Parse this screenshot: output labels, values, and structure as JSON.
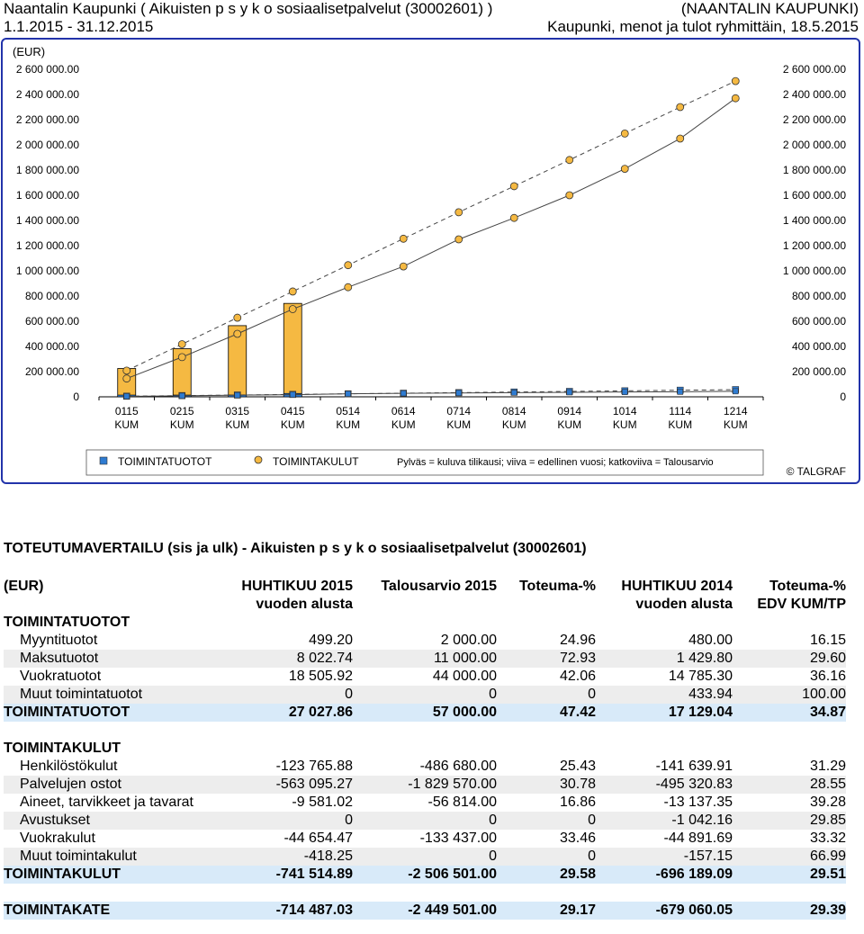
{
  "header": {
    "line1_left": "Naantalin Kaupunki ( Aikuisten  p s y k o sosiaalisetpalvelut (30002601) )",
    "line1_right": "(NAANTALIN KAUPUNKI)",
    "line2_left": "1.1.2015 - 31.12.2015",
    "line2_right": "Kaupunki, menot ja tulot ryhmittäin, 18.5.2015"
  },
  "chart_data": {
    "type": "bar",
    "unit_label": "(EUR)",
    "categories": [
      "0115\nKUM",
      "0215\nKUM",
      "0315\nKUM",
      "0415\nKUM",
      "0514\nKUM",
      "0614\nKUM",
      "0714\nKUM",
      "0814\nKUM",
      "0914\nKUM",
      "1014\nKUM",
      "1114\nKUM",
      "1214\nKUM"
    ],
    "ylim": [
      0,
      2600000
    ],
    "y_ticks": [
      "0",
      "200 000.00",
      "400 000.00",
      "600 000.00",
      "800 000.00",
      "1 000 000.00",
      "1 200 000.00",
      "1 400 000.00",
      "1 600 000.00",
      "1 800 000.00",
      "2 000 000.00",
      "2 200 000.00",
      "2 400 000.00",
      "2 600 000.00"
    ],
    "series": [
      {
        "name": "TOIMINTATUOTOT",
        "kind": "bar",
        "color": "#2e7bd1",
        "values": [
          5500,
          6200,
          14800,
          27027.86,
          null,
          null,
          null,
          null,
          null,
          null,
          null,
          null
        ]
      },
      {
        "name": "TOIMINTAKULUT",
        "kind": "bar",
        "color": "#f5b942",
        "values": [
          225000,
          382000,
          565000,
          741514.89,
          null,
          null,
          null,
          null,
          null,
          null,
          null,
          null
        ]
      },
      {
        "name": "TOIMINTATUOTOT",
        "kind": "line-previous-year",
        "color": "#2e7bd1",
        "values": [
          4000,
          8000,
          13000,
          17129.04,
          24000,
          28000,
          30000,
          33000,
          36000,
          38000,
          40000,
          44000
        ]
      },
      {
        "name": "TOIMINTAKULUT",
        "kind": "line-previous-year",
        "color": "#f5b942",
        "values": [
          145000,
          315000,
          500000,
          696189.09,
          870000,
          1035000,
          1250000,
          1420000,
          1600000,
          1810000,
          2050000,
          2370000
        ]
      },
      {
        "name": "TOIMINTATUOTOT",
        "kind": "dashed-budget",
        "color": "#2e7bd1",
        "values": [
          4800,
          9500,
          14300,
          19000,
          23800,
          28500,
          33300,
          38000,
          42800,
          47500,
          52300,
          57000
        ]
      },
      {
        "name": "TOIMINTAKULUT",
        "kind": "dashed-budget",
        "color": "#f5b942",
        "values": [
          208000,
          418000,
          628000,
          836000,
          1045000,
          1255000,
          1465000,
          1672000,
          1880000,
          2090000,
          2300000,
          2506501
        ]
      }
    ],
    "legend": {
      "tuotot": "TOIMINTATUOTOT",
      "kulut": "TOIMINTAKULUT",
      "note": "Pylväs = kuluva tilikausi; viiva = edellinen vuosi; katkoviiva = Talousarvio"
    },
    "copyright": "© TALGRAF"
  },
  "table": {
    "title": "TOTEUTUMAVERTAILU (sis ja ulk) - Aikuisten  p s y k o sosiaalisetpalvelut (30002601)",
    "headers": {
      "c0": "(EUR)",
      "c1a": "HUHTIKUU 2015",
      "c1b": "vuoden alusta",
      "c2": "Talousarvio 2015",
      "c3": "Toteuma-%",
      "c4a": "HUHTIKUU 2014",
      "c4b": "vuoden alusta",
      "c5a": "Toteuma-%",
      "c5b": "EDV KUM/TP"
    },
    "sec1": "TOIMINTATUOTOT",
    "rows1": [
      [
        "Myyntituotot",
        "499.20",
        "2 000.00",
        "24.96",
        "480.00",
        "16.15"
      ],
      [
        "Maksutuotot",
        "8 022.74",
        "11 000.00",
        "72.93",
        "1 429.80",
        "29.60"
      ],
      [
        "Vuokratuotot",
        "18 505.92",
        "44 000.00",
        "42.06",
        "14 785.30",
        "36.16"
      ],
      [
        "Muut toimintatuotot",
        "0",
        "0",
        "0",
        "433.94",
        "100.00"
      ]
    ],
    "total1": [
      "TOIMINTATUOTOT",
      "27 027.86",
      "57 000.00",
      "47.42",
      "17 129.04",
      "34.87"
    ],
    "sec2": "TOIMINTAKULUT",
    "rows2": [
      [
        "Henkilöstökulut",
        "-123 765.88",
        "-486 680.00",
        "25.43",
        "-141 639.91",
        "31.29"
      ],
      [
        "Palvelujen ostot",
        "-563 095.27",
        "-1 829 570.00",
        "30.78",
        "-495 320.83",
        "28.55"
      ],
      [
        "Aineet, tarvikkeet ja tavarat",
        "-9 581.02",
        "-56 814.00",
        "16.86",
        "-13 137.35",
        "39.28"
      ],
      [
        "Avustukset",
        "0",
        "0",
        "0",
        "-1 042.16",
        "29.85"
      ],
      [
        "Vuokrakulut",
        "-44 654.47",
        "-133 437.00",
        "33.46",
        "-44 891.69",
        "33.32"
      ],
      [
        "Muut toimintakulut",
        "-418.25",
        "0",
        "0",
        "-157.15",
        "66.99"
      ]
    ],
    "total2": [
      "TOIMINTAKULUT",
      "-741 514.89",
      "-2 506 501.00",
      "29.58",
      "-696 189.09",
      "29.51"
    ],
    "total3": [
      "TOIMINTAKATE",
      "-714 487.03",
      "-2 449 501.00",
      "29.17",
      "-679 060.05",
      "29.39"
    ]
  }
}
